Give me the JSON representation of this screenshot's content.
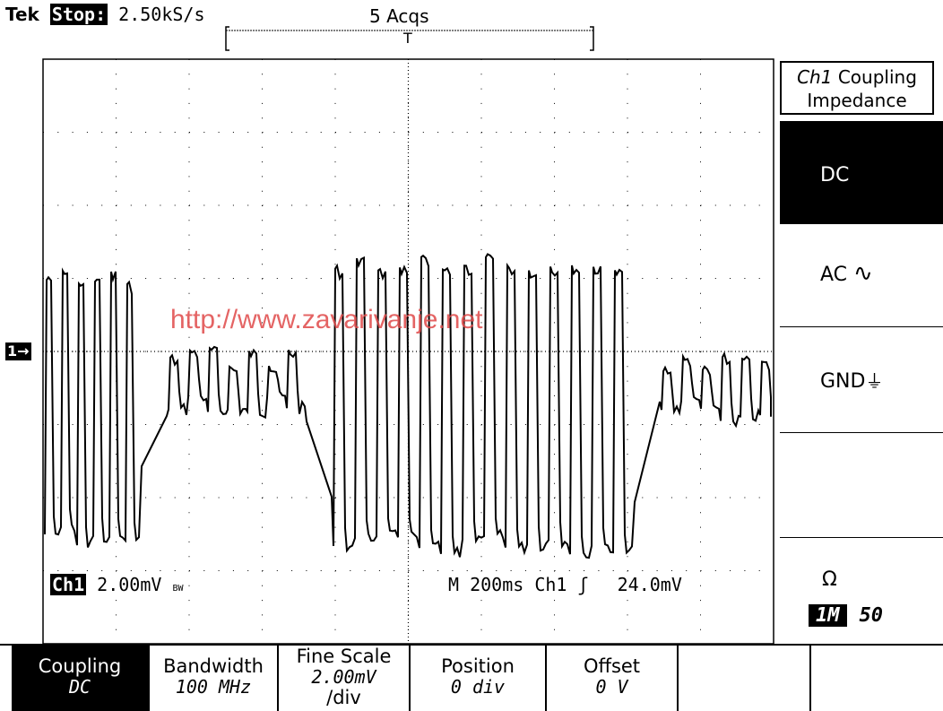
{
  "header": {
    "brand": "Tek",
    "state": "Stop:",
    "sample_rate": "2.50kS/s",
    "acquisitions": "5 Acqs"
  },
  "side_menu": {
    "title_ch": "Ch1",
    "title_rest": "Coupling",
    "title_line2": "Impedance",
    "dc_label": "DC",
    "ac_label": "AC",
    "gnd_label": "GND",
    "ohm_label": "Ω",
    "impedance_selected": "1M",
    "impedance_other": "50"
  },
  "readouts": {
    "channel": "Ch1",
    "volts_per_div": "2.00mV",
    "bw_flag": "BW",
    "timebase": "M 200ms",
    "trigger_source": "Ch1",
    "trigger_slope": "ʃ",
    "trigger_level": "24.0mV",
    "ch1_marker": "1→"
  },
  "watermark": "http://www.zavarivanje.net",
  "bottom_menu": {
    "coupling_label": "Coupling",
    "coupling_value": "DC",
    "bandwidth_label": "Bandwidth",
    "bandwidth_value": "100 MHz",
    "fine_scale_label": "Fine Scale",
    "fine_scale_value": "2.00mV",
    "fine_scale_unit": "/div",
    "position_label": "Position",
    "position_value": "0 div",
    "offset_label": "Offset",
    "offset_value": "0 V"
  },
  "colors": {
    "trace": "#000000",
    "watermark": "#e04a4a",
    "background": "#ffffff"
  }
}
